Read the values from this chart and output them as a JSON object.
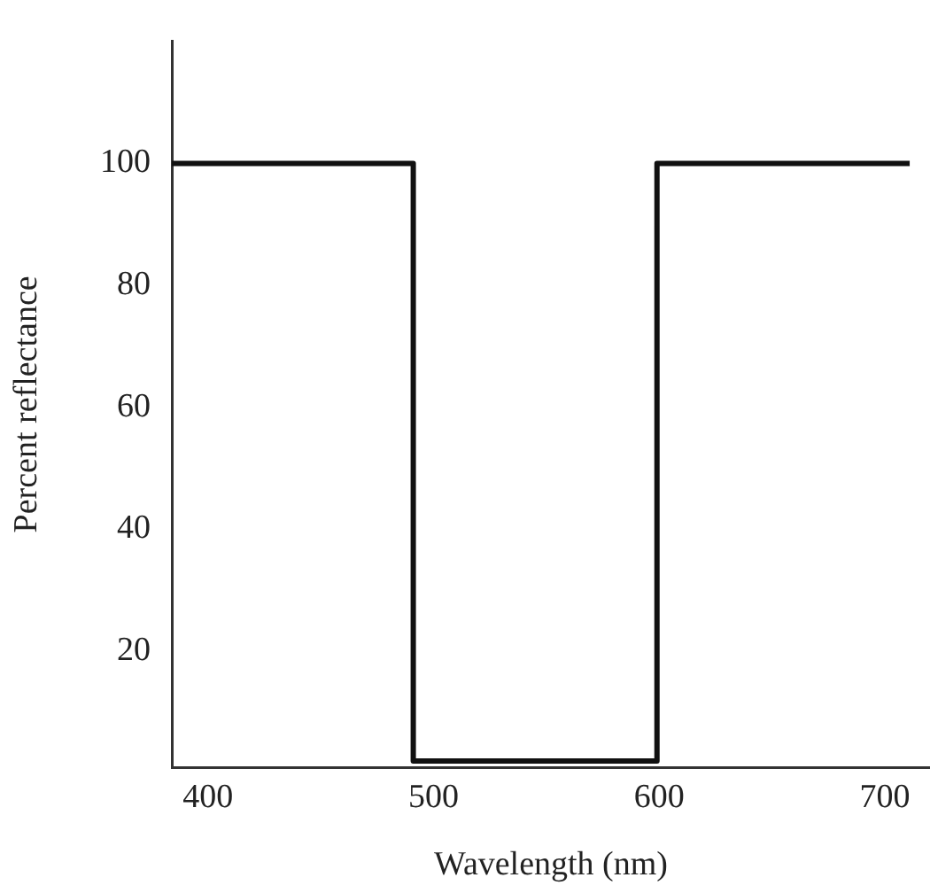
{
  "chart_data": {
    "type": "line",
    "xlabel": "Wavelength (nm)",
    "ylabel": "Percent reflectance",
    "x": [
      384,
      491,
      491,
      599,
      599,
      711
    ],
    "series": [
      {
        "color": "#111111",
        "values": [
          100,
          100,
          2,
          2,
          100,
          100
        ]
      }
    ],
    "xlim": [
      384,
      720
    ],
    "xticks": [
      400,
      500,
      600,
      700
    ],
    "ylim": [
      1,
      120
    ],
    "yticks": [
      20,
      40,
      60,
      80,
      100
    ],
    "grid": false,
    "legend": false,
    "marker": "none",
    "line_style": "solid"
  }
}
